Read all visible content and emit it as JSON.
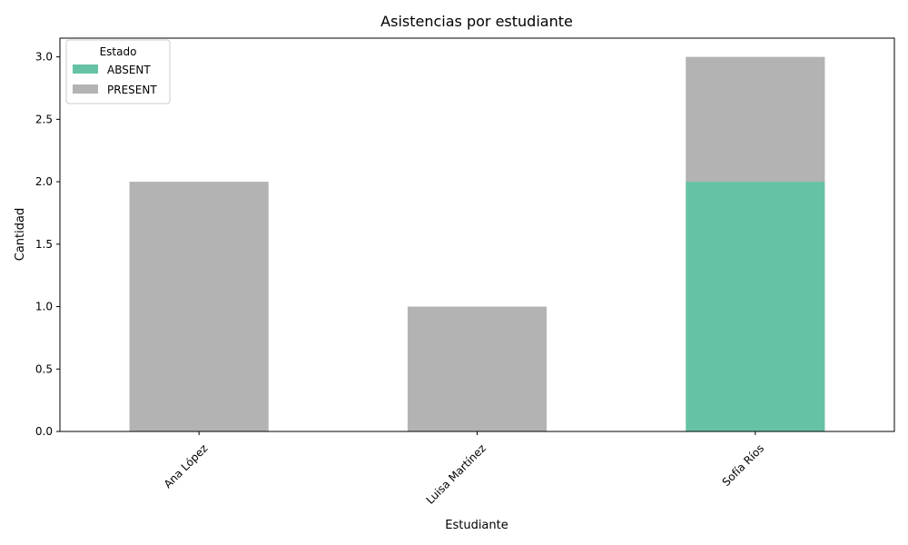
{
  "chart_data": {
    "type": "bar",
    "stacked": true,
    "title": "Asistencias por estudiante",
    "xlabel": "Estudiante",
    "ylabel": "Cantidad",
    "categories": [
      "Ana López",
      "Luisa Martínez",
      "Sofía Ríos"
    ],
    "series": [
      {
        "name": "ABSENT",
        "values": [
          0,
          0,
          2
        ],
        "color": "#66c2a5"
      },
      {
        "name": "PRESENT",
        "values": [
          2,
          1,
          1
        ],
        "color": "#b3b3b3"
      }
    ],
    "ylim": [
      0,
      3.15
    ],
    "yticks": [
      "0.0",
      "0.5",
      "1.0",
      "1.5",
      "2.0",
      "2.5",
      "3.0"
    ],
    "xtick_rotation": 45,
    "grid": false,
    "legend": {
      "title": "Estado",
      "placement": "top-left"
    }
  }
}
